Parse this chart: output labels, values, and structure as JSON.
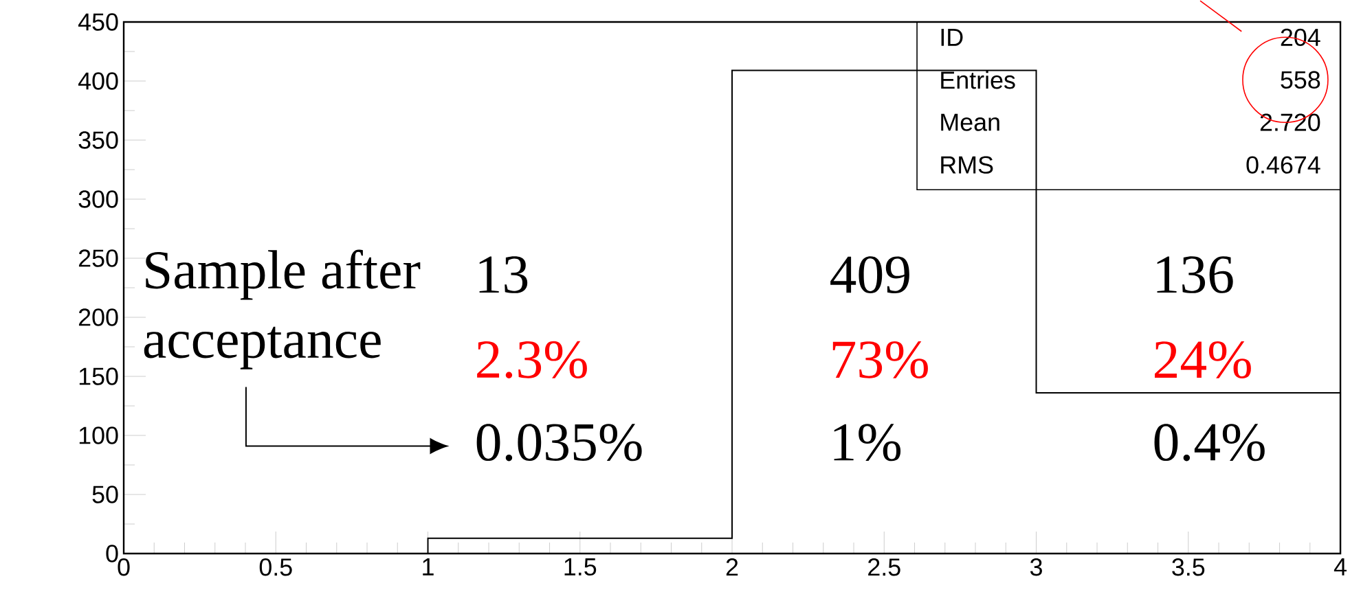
{
  "chart_data": {
    "type": "histogram",
    "bins": [
      0,
      1,
      2,
      3,
      4
    ],
    "values": [
      0,
      13,
      409,
      136
    ],
    "color": "#000000",
    "xlim": [
      0,
      4
    ],
    "ylim": [
      0,
      450
    ],
    "xticks": [
      0,
      0.5,
      1,
      1.5,
      2,
      2.5,
      3,
      3.5,
      4
    ],
    "yticks": [
      0,
      50,
      100,
      150,
      200,
      250,
      300,
      350,
      400,
      450
    ],
    "annotations": [
      "Sample after",
      "acceptance",
      "13",
      "409",
      "136",
      "2.3%",
      "73%",
      "24%",
      "0.035%",
      "1%",
      "0.4%",
      "ID",
      "204",
      "Entries",
      "558",
      "Mean",
      "2.720",
      "RMS",
      "0.4674"
    ]
  }
}
